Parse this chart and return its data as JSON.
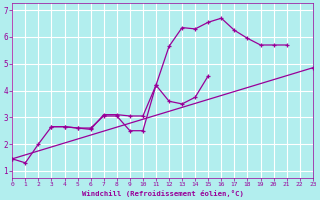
{
  "xlabel": "Windchill (Refroidissement éolien,°C)",
  "bg_color": "#b2eeee",
  "grid_color": "#ffffff",
  "line_color": "#990099",
  "xmin": 0,
  "xmax": 23,
  "ymin": 0.75,
  "ymax": 7.25,
  "yticks": [
    1,
    2,
    3,
    4,
    5,
    6,
    7
  ],
  "xticks": [
    0,
    1,
    2,
    3,
    4,
    5,
    6,
    7,
    8,
    9,
    10,
    11,
    12,
    13,
    14,
    15,
    16,
    17,
    18,
    19,
    20,
    21,
    22,
    23
  ],
  "line1_x": [
    0,
    1,
    2,
    3,
    4,
    5,
    6,
    7,
    8,
    9,
    10,
    11,
    12,
    13,
    14,
    15,
    16,
    17,
    18,
    19,
    20,
    21
  ],
  "line1_y": [
    1.45,
    1.3,
    2.0,
    2.65,
    2.65,
    2.6,
    2.55,
    3.1,
    3.1,
    3.05,
    3.05,
    4.2,
    5.65,
    6.35,
    6.3,
    6.55,
    6.7,
    6.25,
    5.95,
    5.7,
    5.7,
    5.7
  ],
  "line2_x": [
    3,
    4,
    5,
    6,
    7,
    8,
    9,
    10,
    11,
    12,
    13,
    14,
    15
  ],
  "line2_y": [
    2.65,
    2.65,
    2.6,
    2.6,
    3.05,
    3.05,
    2.5,
    2.5,
    4.2,
    3.6,
    3.5,
    3.75,
    4.55
  ],
  "line3_x": [
    0,
    23
  ],
  "line3_y": [
    1.45,
    4.85
  ]
}
